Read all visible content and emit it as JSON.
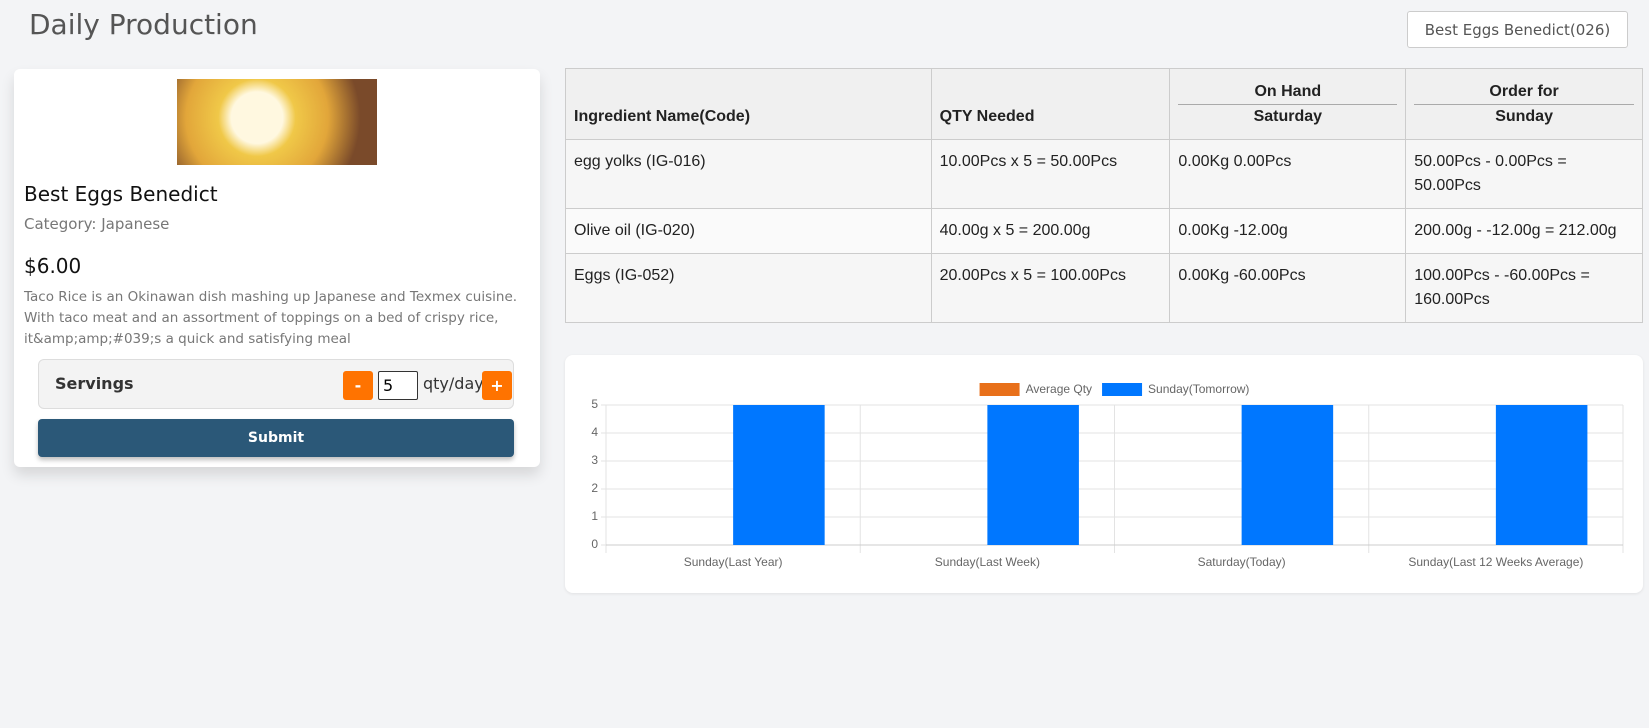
{
  "header": {
    "title": "Daily Production",
    "selector": "Best Eggs Benedict(026)"
  },
  "recipe": {
    "name": "Best Eggs Benedict",
    "category": "Category: Japanese",
    "price": "$6.00",
    "description": "Taco Rice is an Okinawan dish mashing up Japanese and Texmex cuisine. With taco meat and an assortment of toppings on a bed of crispy rice, it&amp;amp;#039;s a quick and satisfying meal",
    "servings_label": "Servings",
    "minus": "-",
    "servings_value": "5",
    "unit": "qty/day",
    "plus": "+",
    "submit": "Submit"
  },
  "table": {
    "headers": [
      {
        "bottom": "Ingredient Name(Code)"
      },
      {
        "bottom": "QTY Needed"
      },
      {
        "top": "On Hand",
        "bottom": "Saturday"
      },
      {
        "top": "Order for",
        "bottom": "Sunday"
      }
    ],
    "rows": [
      [
        "egg yolks (IG-016)",
        "10.00Pcs x 5 = 50.00Pcs",
        "0.00Kg 0.00Pcs",
        "50.00Pcs - 0.00Pcs = 50.00Pcs"
      ],
      [
        "Olive oil (IG-020)",
        "40.00g x 5 = 200.00g",
        "0.00Kg -12.00g",
        "200.00g - -12.00g = 212.00g"
      ],
      [
        "Eggs (IG-052)",
        "20.00Pcs x 5 = 100.00Pcs",
        "0.00Kg -60.00Pcs",
        "100.00Pcs - -60.00Pcs = 160.00Pcs"
      ]
    ]
  },
  "chart_data": {
    "type": "bar",
    "categories": [
      "Sunday(Last Year)",
      "Sunday(Last Week)",
      "Saturday(Today)",
      "Sunday(Last 12 Weeks Average)"
    ],
    "series": [
      {
        "name": "Average Qty",
        "color": "#e8701a",
        "values": [
          0,
          0,
          0,
          0
        ]
      },
      {
        "name": "Sunday(Tomorrow)",
        "color": "#0077ff",
        "values": [
          5,
          5,
          5,
          5
        ]
      }
    ],
    "ylim": [
      0,
      5
    ],
    "yticks": [
      0,
      1,
      2,
      3,
      4,
      5
    ],
    "grid": true,
    "legend": "top"
  }
}
